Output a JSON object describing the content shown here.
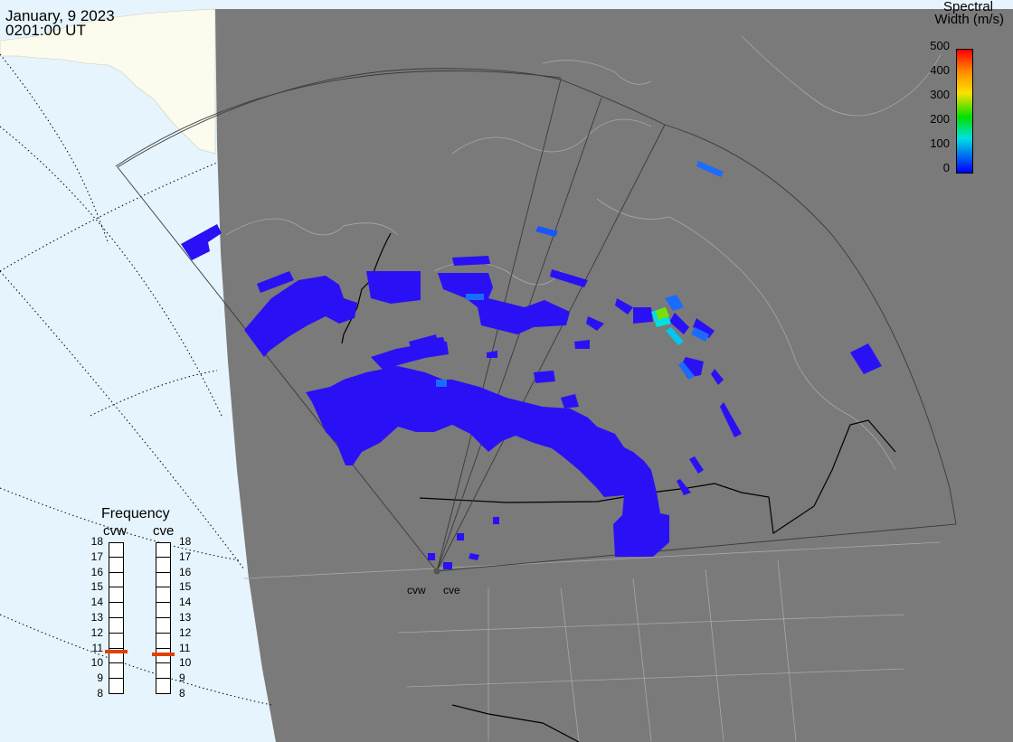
{
  "header": {
    "date": "January, 9 2023",
    "time": "0201:00 UT"
  },
  "colorbar": {
    "title_line1": "Spectral",
    "title_line2": "Width (m/s)",
    "ticks": [
      "500",
      "400",
      "300",
      "200",
      "100",
      "0"
    ],
    "colors": [
      "#ff0000",
      "#ff8c00",
      "#ffe000",
      "#00e000",
      "#00e0e0",
      "#0000ff"
    ]
  },
  "frequency": {
    "title": "Frequency",
    "radars": [
      {
        "name": "cvw",
        "value_mhz": 10.8
      },
      {
        "name": "cve",
        "value_mhz": 10.6
      }
    ],
    "ticks": [
      "18",
      "17",
      "16",
      "15",
      "14",
      "13",
      "12",
      "11",
      "10",
      "9",
      "8"
    ],
    "marker_color": "#e04000"
  },
  "sites": [
    {
      "name": "cvw"
    },
    {
      "name": "cve"
    }
  ],
  "map_colors": {
    "ocean": "#e6f4fd",
    "land": "#fbfbee",
    "night": "#7a7a7a",
    "echo": "#2a10f5"
  }
}
